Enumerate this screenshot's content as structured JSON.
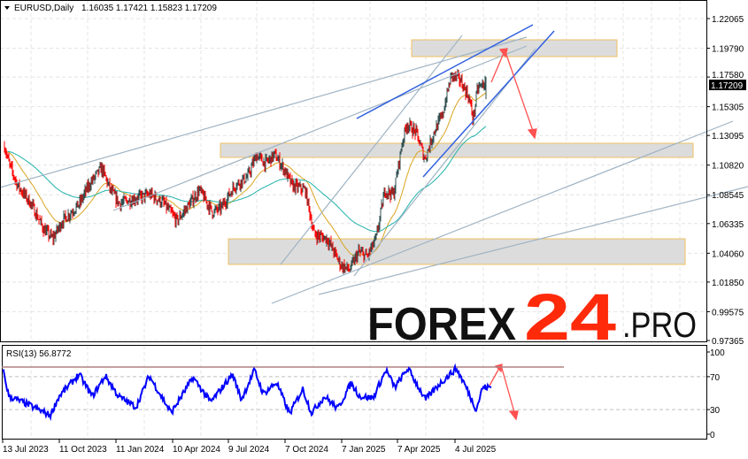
{
  "header": {
    "symbol": "EURUSD,Daily",
    "ohlc": "1.16035 1.17421 1.15823 1.17209"
  },
  "current_price_label": "1.17209",
  "logo": {
    "part1": "FOREX",
    "part2": "24",
    "part3": ".PRO"
  },
  "colors": {
    "bull": "#2f4f4f",
    "bear": "#ff0000",
    "ma_fast": "#daa520",
    "ma_slow": "#20b2aa",
    "rsi": "#0000ff",
    "arrow": "#ff5050",
    "zone_fill": "#dcdcdc",
    "zone_border": "#f0c060",
    "trend_gray": "#a0b4c4",
    "trend_blue": "#3060e0",
    "logo_red": "#ff2a0a"
  },
  "chart_data": [
    {
      "type": "candlestick",
      "title": "EURUSD,Daily",
      "price_ticks": [
        "1.22065",
        "1.19790",
        "1.17580",
        "1.15305",
        "1.13095",
        "1.10820",
        "1.08545",
        "1.06335",
        "1.04060",
        "1.01850",
        "0.99575",
        "0.97365"
      ],
      "ylim": [
        0.97365,
        1.22065
      ],
      "date_ticks": [
        "13 Jul 2023",
        "11 Oct 2023",
        "11 Jan 2024",
        "10 Apr 2024",
        "9 Jul 2024",
        "7 Oct 2024",
        "7 Jan 2025",
        "7 Apr 2025",
        "4 Jul 2025"
      ],
      "grid": true,
      "close_keypoints": [
        [
          "2023-07-16",
          1.1229
        ],
        [
          "2023-07-23",
          1.1094
        ],
        [
          "2023-08-06",
          1.0924
        ],
        [
          "2023-08-27",
          1.0788
        ],
        [
          "2023-09-17",
          1.0585
        ],
        [
          "2023-10-01",
          1.0517
        ],
        [
          "2023-10-16",
          1.0653
        ],
        [
          "2023-11-13",
          1.0788
        ],
        [
          "2023-11-27",
          1.0924
        ],
        [
          "2023-12-18",
          1.106
        ],
        [
          "2024-01-01",
          1.089
        ],
        [
          "2024-01-15",
          1.0788
        ],
        [
          "2024-02-06",
          1.0822
        ],
        [
          "2024-03-05",
          1.0856
        ],
        [
          "2024-03-26",
          1.0788
        ],
        [
          "2024-04-16",
          1.0653
        ],
        [
          "2024-05-07",
          1.0788
        ],
        [
          "2024-05-22",
          1.089
        ],
        [
          "2024-06-12",
          1.072
        ],
        [
          "2024-06-26",
          1.0754
        ],
        [
          "2024-07-17",
          1.0924
        ],
        [
          "2024-08-07",
          1.0992
        ],
        [
          "2024-08-21",
          1.1161
        ],
        [
          "2024-09-04",
          1.1094
        ],
        [
          "2024-09-19",
          1.1161
        ],
        [
          "2024-10-03",
          1.106
        ],
        [
          "2024-10-17",
          1.0924
        ],
        [
          "2024-11-07",
          1.089
        ],
        [
          "2024-11-21",
          1.0551
        ],
        [
          "2024-12-12",
          1.0517
        ],
        [
          "2025-01-03",
          1.0313
        ],
        [
          "2025-01-17",
          1.0279
        ],
        [
          "2025-01-31",
          1.0415
        ],
        [
          "2025-02-14",
          1.0381
        ],
        [
          "2025-02-28",
          1.0517
        ],
        [
          "2025-03-14",
          1.089
        ],
        [
          "2025-03-28",
          1.0856
        ],
        [
          "2025-04-11",
          1.1263
        ],
        [
          "2025-04-18",
          1.1399
        ],
        [
          "2025-05-03",
          1.1331
        ],
        [
          "2025-05-17",
          1.1127
        ],
        [
          "2025-05-31",
          1.1331
        ],
        [
          "2025-06-14",
          1.1467
        ],
        [
          "2025-06-28",
          1.1772
        ],
        [
          "2025-07-12",
          1.1738
        ],
        [
          "2025-07-26",
          1.1603
        ],
        [
          "2025-08-02",
          1.1433
        ],
        [
          "2025-08-09",
          1.167
        ],
        [
          "2025-08-23",
          1.1721
        ]
      ],
      "last": {
        "open": 1.16035,
        "high": 1.17421,
        "low": 1.15823,
        "close": 1.17209
      }
    },
    {
      "type": "line",
      "title": "RSI(13) 56.8772",
      "ylim": [
        0,
        100
      ],
      "y_ticks": [
        "100",
        "70",
        "30",
        "0"
      ],
      "levels": [
        70,
        30
      ],
      "value_keypoints": [
        [
          "2023-07-13",
          80
        ],
        [
          "2023-07-23",
          46
        ],
        [
          "2023-08-20",
          37
        ],
        [
          "2023-09-27",
          23
        ],
        [
          "2023-10-11",
          46
        ],
        [
          "2023-11-12",
          73
        ],
        [
          "2023-12-03",
          46
        ],
        [
          "2023-12-24",
          71
        ],
        [
          "2024-01-14",
          46
        ],
        [
          "2024-02-11",
          33
        ],
        [
          "2024-03-03",
          71
        ],
        [
          "2024-04-07",
          26
        ],
        [
          "2024-05-12",
          69
        ],
        [
          "2024-06-09",
          39
        ],
        [
          "2024-07-14",
          73
        ],
        [
          "2024-07-28",
          42
        ],
        [
          "2024-08-18",
          78
        ],
        [
          "2024-09-01",
          49
        ],
        [
          "2024-09-22",
          63
        ],
        [
          "2024-10-13",
          25
        ],
        [
          "2024-11-03",
          55
        ],
        [
          "2024-11-17",
          26
        ],
        [
          "2024-12-08",
          46
        ],
        [
          "2024-12-29",
          31
        ],
        [
          "2025-01-19",
          62
        ],
        [
          "2025-02-02",
          46
        ],
        [
          "2025-02-23",
          44
        ],
        [
          "2025-03-16",
          78
        ],
        [
          "2025-03-30",
          57
        ],
        [
          "2025-04-20",
          80
        ],
        [
          "2025-05-18",
          42
        ],
        [
          "2025-06-08",
          60
        ],
        [
          "2025-07-06",
          80
        ],
        [
          "2025-07-20",
          60
        ],
        [
          "2025-08-07",
          30
        ],
        [
          "2025-08-17",
          57
        ],
        [
          "2025-08-31",
          56.8772
        ]
      ]
    }
  ]
}
